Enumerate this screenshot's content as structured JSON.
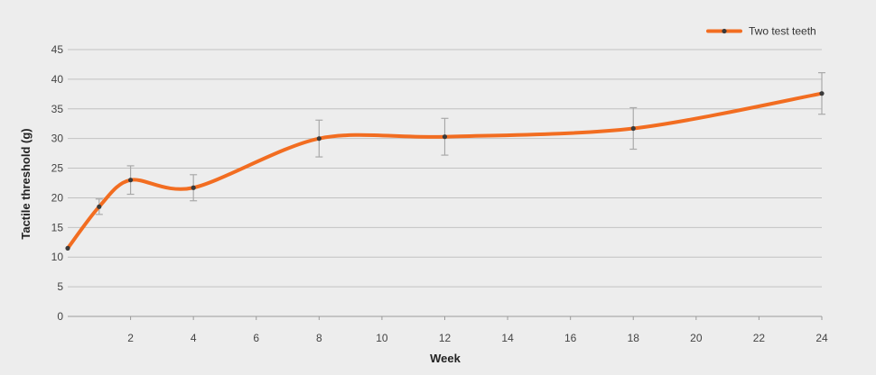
{
  "chart_data": {
    "type": "line",
    "xlabel": "Week",
    "ylabel": "Tactile threshold (g)",
    "xlim": [
      0,
      24
    ],
    "ylim": [
      0,
      45
    ],
    "x_ticks": [
      2,
      4,
      6,
      8,
      10,
      12,
      14,
      16,
      18,
      20,
      22,
      24
    ],
    "y_ticks": [
      0,
      5,
      10,
      15,
      20,
      25,
      30,
      35,
      40,
      45
    ],
    "grid": "horizontal",
    "legend_position": "top-right",
    "series": [
      {
        "name": "Two test teeth",
        "color": "#f26d21",
        "points": [
          {
            "x": 0,
            "y": 11.5
          },
          {
            "x": 1,
            "y": 18.5,
            "err": 1.3
          },
          {
            "x": 2,
            "y": 23.0,
            "err": 2.4
          },
          {
            "x": 4,
            "y": 21.7,
            "err": 2.2
          },
          {
            "x": 8,
            "y": 30.0,
            "err": 3.1
          },
          {
            "x": 12,
            "y": 30.3,
            "err": 3.1
          },
          {
            "x": 18,
            "y": 31.7,
            "err": 3.5
          },
          {
            "x": 24,
            "y": 37.6,
            "err": 3.5
          }
        ]
      }
    ]
  }
}
